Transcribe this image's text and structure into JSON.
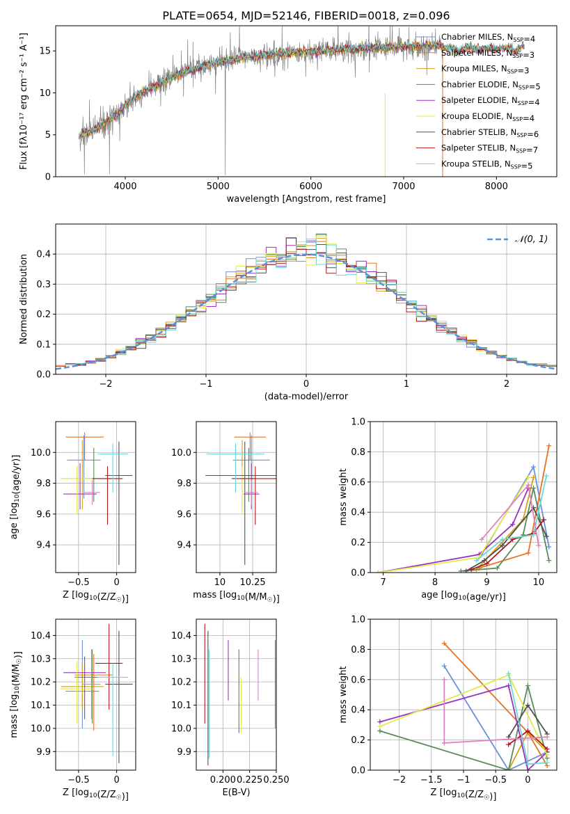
{
  "figure": {
    "title": "PLATE=0654, MJD=52146, FIBERID=0018, z=0.096"
  },
  "colors": {
    "data": "#808080",
    "models": [
      "#6a8fdc",
      "#e57322",
      "#d4a017",
      "#5b8a5b",
      "#9a32c0",
      "#e4e94a",
      "#505050",
      "#b01818",
      "#6ad8d8"
    ],
    "extra_pink": "#e080c0",
    "normal_curve": "#5b8fdc",
    "grid": "#b0b0b0"
  },
  "chart_data": [
    {
      "id": "spectrum",
      "type": "line",
      "xlabel": "wavelength [Angstrom, rest frame]",
      "ylabel": "Flux [fλ10⁻¹⁷ erg cm⁻² s⁻¹ A⁻¹]",
      "xlim": [
        3250,
        8650
      ],
      "ylim": [
        0,
        18
      ],
      "xticks": [
        4000,
        5000,
        6000,
        7000,
        8000
      ],
      "yticks": [
        0,
        5,
        10,
        15
      ],
      "grid": false,
      "legend_position": "top-right",
      "legend": [
        "Chabrier MILES, N_SSP=4",
        "Salpeter MILES, N_SSP=3",
        "Kroupa MILES, N_SSP=3",
        "Chabrier ELODIE, N_SSP=5",
        "Salpeter ELODIE, N_SSP=4",
        "Kroupa ELODIE, N_SSP=4",
        "Chabrier STELIB, N_SSP=6",
        "Salpeter STELIB, N_SSP=7",
        "Kroupa STELIB, N_SSP=5"
      ],
      "continuum": {
        "x": [
          3500,
          3600,
          3700,
          3800,
          3900,
          4000,
          4200,
          4400,
          4600,
          4800,
          5000,
          5200,
          5400,
          5600,
          5800,
          6000,
          6200,
          6400,
          6600,
          6800,
          7000,
          7200,
          7400,
          7500,
          7600,
          7700,
          7800,
          7900,
          8000,
          8100,
          8200,
          8300
        ],
        "y": [
          4.8,
          5.3,
          5.8,
          6.6,
          7.3,
          8.6,
          10.1,
          11.3,
          12.3,
          13.0,
          13.6,
          14.0,
          14.4,
          14.6,
          14.7,
          14.9,
          15.0,
          15.2,
          15.3,
          15.4,
          15.5,
          15.6,
          15.6,
          15.3,
          15.0,
          15.5,
          15.2,
          15.3,
          15.2,
          15.4,
          15.0,
          15.6
        ]
      }
    },
    {
      "id": "residuals",
      "type": "area",
      "xlabel": "(data-model)/error",
      "ylabel": "Normed distribution",
      "xlim": [
        -2.5,
        2.5
      ],
      "ylim": [
        0,
        0.5
      ],
      "xticks": [
        -2,
        -1,
        0,
        1,
        2
      ],
      "yticks": [
        0.0,
        0.1,
        0.2,
        0.3,
        0.4
      ],
      "grid": true,
      "legend_position": "top-right",
      "legend": [
        "N(0,1)"
      ],
      "bin_width": 0.1
    },
    {
      "id": "age-vs-Z",
      "type": "scatter",
      "xlabel": "Z [log10(Z/Z☉)]",
      "ylabel": "age  [log10(age/yr)]",
      "xlim": [
        -0.8,
        0.25
      ],
      "ylim": [
        9.22,
        10.2
      ],
      "xticks": [
        -0.5,
        0.0
      ],
      "yticks": [
        9.4,
        9.6,
        9.8,
        10.0
      ],
      "grid": true,
      "points": [
        {
          "x": -0.43,
          "y": 9.95,
          "xerr": 0.22,
          "yerr": [
            0.25,
            0.16
          ],
          "c": 0
        },
        {
          "x": -0.42,
          "y": 10.1,
          "xerr": 0.25,
          "yerr": [
            0.15,
            0.03
          ],
          "c": 1
        },
        {
          "x": -0.45,
          "y": 9.83,
          "xerr": 0.28,
          "yerr": [
            0.2,
            0.25
          ],
          "c": 2
        },
        {
          "x": -0.3,
          "y": 9.83,
          "xerr": 0.23,
          "yerr": [
            0.15,
            0.2
          ],
          "c": 3
        },
        {
          "x": -0.48,
          "y": 9.73,
          "xerr": 0.22,
          "yerr": [
            0.1,
            0.2
          ],
          "c": 4
        },
        {
          "x": -0.52,
          "y": 9.83,
          "xerr": 0.22,
          "yerr": [
            0.23,
            0.08
          ],
          "c": 5
        },
        {
          "x": 0.03,
          "y": 9.85,
          "xerr": 0.18,
          "yerr": [
            0.58,
            0.22
          ],
          "c": 6
        },
        {
          "x": -0.12,
          "y": 9.83,
          "xerr": 0.2,
          "yerr": [
            0.3,
            0.08
          ],
          "c": 7
        },
        {
          "x": -0.05,
          "y": 9.99,
          "xerr": 0.2,
          "yerr": [
            0.25,
            0.07
          ],
          "c": 8
        },
        {
          "x": -0.32,
          "y": 9.74,
          "xerr": 0.1,
          "yerr": [
            0.08,
            0.08
          ],
          "c": 9
        }
      ]
    },
    {
      "id": "age-vs-mass",
      "type": "scatter",
      "xlabel": "mass [log10(M/M☉)]",
      "ylabel": "",
      "xlim": [
        9.82,
        10.43
      ],
      "ylim": [
        9.22,
        10.2
      ],
      "xticks": [
        10.0,
        10.25
      ],
      "yticks": [
        9.4,
        9.6,
        9.8,
        10.0
      ],
      "grid": true,
      "points": [
        {
          "x": 10.24,
          "y": 9.95,
          "xerr": 0.14,
          "yerr": [
            0.25,
            0.16
          ],
          "c": 0
        },
        {
          "x": 10.23,
          "y": 10.1,
          "xerr": 0.12,
          "yerr": [
            0.15,
            0.03
          ],
          "c": 1
        },
        {
          "x": 10.17,
          "y": 9.83,
          "xerr": 0.08,
          "yerr": [
            0.2,
            0.25
          ],
          "c": 2
        },
        {
          "x": 10.22,
          "y": 9.83,
          "xerr": 0.05,
          "yerr": [
            0.15,
            0.2
          ],
          "c": 3
        },
        {
          "x": 10.24,
          "y": 9.73,
          "xerr": 0.06,
          "yerr": [
            0.1,
            0.2
          ],
          "c": 4
        },
        {
          "x": 10.17,
          "y": 9.83,
          "xerr": 0.06,
          "yerr": [
            0.23,
            0.08
          ],
          "c": 5
        },
        {
          "x": 10.19,
          "y": 9.85,
          "xerr": 0.3,
          "yerr": [
            0.58,
            0.22
          ],
          "c": 6
        },
        {
          "x": 10.27,
          "y": 9.83,
          "xerr": 0.18,
          "yerr": [
            0.3,
            0.08
          ],
          "c": 7
        },
        {
          "x": 10.12,
          "y": 9.99,
          "xerr": 0.22,
          "yerr": [
            0.25,
            0.07
          ],
          "c": 8
        },
        {
          "x": 10.24,
          "y": 9.74,
          "xerr": 0.05,
          "yerr": [
            0.08,
            0.08
          ],
          "c": 9
        }
      ]
    },
    {
      "id": "mass-weight-vs-age",
      "type": "line",
      "xlabel": "age  [log10(age/yr)]",
      "ylabel": "mass weight",
      "xlim": [
        6.75,
        10.35
      ],
      "ylim": [
        0,
        1
      ],
      "xticks": [
        7,
        8,
        9,
        10
      ],
      "yticks": [
        0.0,
        0.2,
        0.4,
        0.6,
        0.8,
        1.0
      ],
      "grid": true,
      "series": [
        {
          "c": 0,
          "x": [
            8.9,
            9.9,
            10.2
          ],
          "y": [
            0.12,
            0.7,
            0.17
          ]
        },
        {
          "c": 1,
          "x": [
            8.85,
            9.8,
            10.2
          ],
          "y": [
            0.03,
            0.13,
            0.84
          ]
        },
        {
          "c": 2,
          "x": [
            8.8,
            9.7,
            9.9
          ],
          "y": [
            0.02,
            0.35,
            0.63
          ]
        },
        {
          "c": 3,
          "x": [
            8.5,
            9.2,
            9.7,
            9.9,
            10.2
          ],
          "y": [
            0.01,
            0.03,
            0.25,
            0.56,
            0.08
          ]
        },
        {
          "c": 4,
          "x": [
            6.9,
            8.85,
            9.5,
            9.8
          ],
          "y": [
            0.0,
            0.12,
            0.32,
            0.56
          ]
        },
        {
          "c": 5,
          "x": [
            6.9,
            8.85,
            9.8
          ],
          "y": [
            0.0,
            0.1,
            0.63
          ]
        },
        {
          "c": 6,
          "x": [
            8.6,
            8.95,
            9.3,
            9.9,
            10.15
          ],
          "y": [
            0.01,
            0.08,
            0.18,
            0.43,
            0.24
          ]
        },
        {
          "c": 7,
          "x": [
            8.7,
            9.0,
            9.5,
            9.9,
            10.1
          ],
          "y": [
            0.02,
            0.06,
            0.22,
            0.26,
            0.35
          ]
        },
        {
          "c": 8,
          "x": [
            8.8,
            9.3,
            9.9,
            10.15
          ],
          "y": [
            0.08,
            0.22,
            0.25,
            0.64
          ]
        },
        {
          "c": 9,
          "x": [
            8.9,
            9.8,
            10.0
          ],
          "y": [
            0.22,
            0.58,
            0.18
          ]
        }
      ]
    },
    {
      "id": "mass-vs-Z",
      "type": "scatter",
      "xlabel": "Z [log10(Z/Z☉)]",
      "ylabel": "mass [log10(M/M☉)]",
      "xlim": [
        -0.8,
        0.25
      ],
      "ylim": [
        9.82,
        10.47
      ],
      "xticks": [
        -0.5,
        0.0
      ],
      "yticks": [
        9.9,
        10.0,
        10.1,
        10.2,
        10.3,
        10.4
      ],
      "grid": true,
      "points": [
        {
          "x": -0.45,
          "y": 10.16,
          "xerr": 0.22,
          "yerr": [
            0.16,
            0.22
          ],
          "c": 0
        },
        {
          "x": -0.3,
          "y": 10.23,
          "xerr": 0.25,
          "yerr": [
            0.24,
            0.09
          ],
          "c": 1
        },
        {
          "x": -0.45,
          "y": 10.18,
          "xerr": 0.28,
          "yerr": [
            0.1,
            0.1
          ],
          "c": 2
        },
        {
          "x": -0.32,
          "y": 10.22,
          "xerr": 0.23,
          "yerr": [
            0.2,
            0.12
          ],
          "c": 3
        },
        {
          "x": -0.42,
          "y": 10.24,
          "xerr": 0.28,
          "yerr": [
            0.2,
            0.07
          ],
          "c": 4
        },
        {
          "x": -0.52,
          "y": 10.17,
          "xerr": 0.22,
          "yerr": [
            0.15,
            0.12
          ],
          "c": 5
        },
        {
          "x": 0.03,
          "y": 10.19,
          "xerr": 0.18,
          "yerr": [
            0.34,
            0.23
          ],
          "c": 6
        },
        {
          "x": -0.1,
          "y": 10.28,
          "xerr": 0.18,
          "yerr": [
            0.2,
            0.17
          ],
          "c": 7
        },
        {
          "x": -0.05,
          "y": 10.22,
          "xerr": 0.2,
          "yerr": [
            0.34,
            0.06
          ],
          "c": 8
        },
        {
          "x": -0.33,
          "y": 10.19,
          "xerr": 0.12,
          "yerr": [
            0.15,
            0.15
          ],
          "c": 9
        }
      ]
    },
    {
      "id": "mass-vs-ebv",
      "type": "scatter",
      "xlabel": "E(B-V)",
      "ylabel": "",
      "xlim": [
        0.175,
        0.25
      ],
      "ylim": [
        9.82,
        10.47
      ],
      "xticks": [
        0.2,
        0.225,
        0.25
      ],
      "xticklabels": [
        "0.200",
        "0.225",
        "0.250"
      ],
      "yticks": [
        9.9,
        10.0,
        10.1,
        10.2,
        10.3,
        10.4
      ],
      "grid": true,
      "points": [
        {
          "x": 0.183,
          "y": 10.23,
          "yerr": [
            0.21,
            0.22
          ],
          "c": 7
        },
        {
          "x": 0.186,
          "y": 10.15,
          "yerr": [
            0.31,
            0.27
          ],
          "c": 6
        },
        {
          "x": 0.187,
          "y": 10.13,
          "yerr": [
            0.26,
            0.21
          ],
          "c": 8
        },
        {
          "x": 0.205,
          "y": 10.22,
          "yerr": [
            0.1,
            0.16
          ],
          "c": 4
        },
        {
          "x": 0.215,
          "y": 10.18,
          "yerr": [
            0.2,
            0.16
          ],
          "c": 3
        },
        {
          "x": 0.217,
          "y": 10.1,
          "yerr": [
            0.12,
            0.12
          ],
          "c": 5
        },
        {
          "x": 0.233,
          "y": 10.22,
          "yerr": [
            0.1,
            0.12
          ],
          "c": 9
        },
        {
          "x": 0.249,
          "y": 10.2,
          "yerr": [
            0.2,
            0.18
          ],
          "c": 0
        },
        {
          "x": 0.25,
          "y": 10.15,
          "yerr": [
            0.15,
            0.1
          ],
          "c": 1
        }
      ]
    },
    {
      "id": "mass-weight-vs-Z",
      "type": "line",
      "xlabel": "Z [log10(Z/Z☉)]",
      "ylabel": "mass weight",
      "xlim": [
        -2.45,
        0.45
      ],
      "ylim": [
        0,
        1
      ],
      "xticks": [
        -2.0,
        -1.5,
        -1.0,
        -0.5,
        0.0
      ],
      "yticks": [
        0.0,
        0.2,
        0.4,
        0.6,
        0.8,
        1.0
      ],
      "grid": true,
      "series": [
        {
          "c": 0,
          "x": [
            -1.3,
            -0.3,
            0.3
          ],
          "y": [
            0.69,
            0.0,
            0.12
          ]
        },
        {
          "c": 1,
          "x": [
            -1.3,
            0.0,
            0.3
          ],
          "y": [
            0.84,
            0.25,
            0.03
          ]
        },
        {
          "c": 2,
          "x": [
            -0.3,
            0.0,
            0.3
          ],
          "y": [
            0.0,
            0.25,
            0.12
          ]
        },
        {
          "c": 3,
          "x": [
            -2.3,
            -0.3,
            0.0,
            0.3
          ],
          "y": [
            0.26,
            0.0,
            0.56,
            0.08
          ]
        },
        {
          "c": 4,
          "x": [
            -2.3,
            -0.3,
            0.0,
            0.3
          ],
          "y": [
            0.32,
            0.56,
            0.0,
            0.12
          ]
        },
        {
          "c": 5,
          "x": [
            -2.3,
            -0.3,
            0.3
          ],
          "y": [
            0.29,
            0.63,
            0.1
          ]
        },
        {
          "c": 6,
          "x": [
            -0.3,
            0.0,
            0.3
          ],
          "y": [
            0.22,
            0.43,
            0.24
          ]
        },
        {
          "c": 7,
          "x": [
            -0.3,
            0.0,
            0.3
          ],
          "y": [
            0.17,
            0.26,
            0.14
          ]
        },
        {
          "c": 8,
          "x": [
            -0.3,
            0.0,
            0.3
          ],
          "y": [
            0.64,
            0.04,
            0.05
          ]
        },
        {
          "c": 9,
          "x": [
            -1.3,
            -1.3,
            0.3
          ],
          "y": [
            0.6,
            0.18,
            0.22
          ]
        }
      ]
    }
  ]
}
